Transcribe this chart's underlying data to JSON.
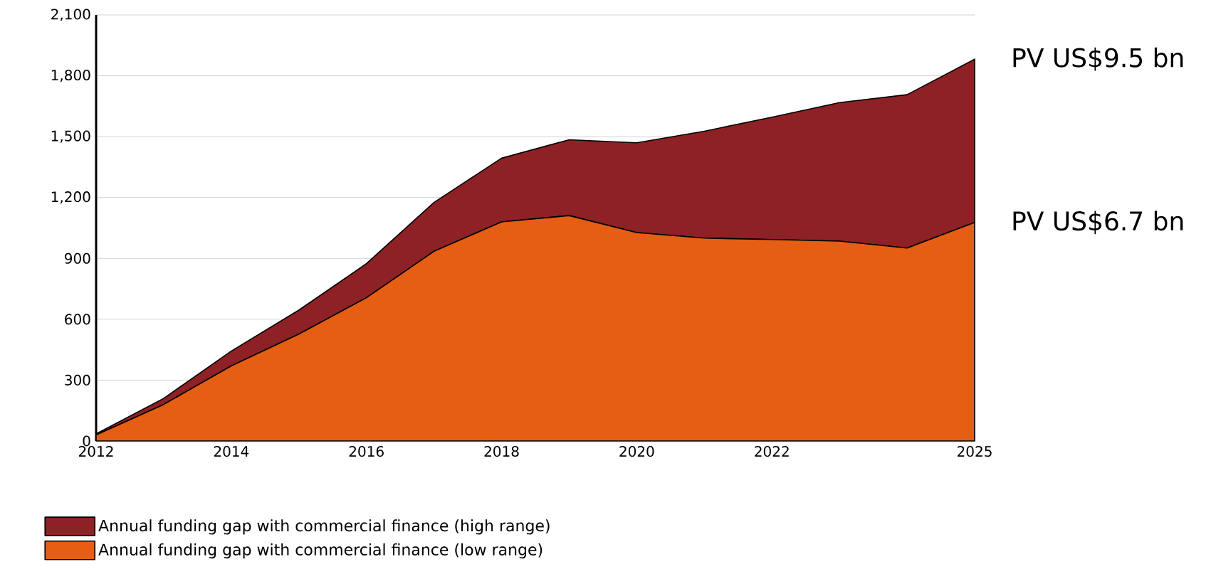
{
  "chart_data": {
    "type": "area",
    "stacked": true,
    "x": [
      2012,
      2013,
      2014,
      2015,
      2016,
      2017,
      2018,
      2019,
      2020,
      2021,
      2022,
      2023,
      2024,
      2025
    ],
    "series": [
      {
        "name": "Annual funding gap with commercial finance (low range)",
        "color": "#e55e13",
        "values": [
          30,
          180,
          370,
          527,
          706,
          935,
          1080,
          1111,
          1027,
          1000,
          993,
          985,
          951,
          1077
        ]
      },
      {
        "name": "Annual funding gap with commercial finance (high range)",
        "color": "#8d2125",
        "values": [
          5,
          30,
          73,
          118,
          168,
          241,
          314,
          374,
          443,
          527,
          603,
          683,
          756,
          805
        ]
      }
    ],
    "xlim": [
      2012,
      2025
    ],
    "xticks": [
      2012,
      2014,
      2016,
      2018,
      2020,
      2022,
      2025
    ],
    "ylim": [
      0,
      2100
    ],
    "yticks": [
      0,
      300,
      600,
      900,
      {
        "value": 1200,
        "label": "1,200"
      },
      {
        "value": 1500,
        "label": "1,500"
      },
      {
        "value": 1800,
        "label": "1,800"
      },
      {
        "value": 2100,
        "label": "2,100"
      }
    ],
    "grid": "y",
    "legend": "bottom left",
    "annotations": [
      {
        "text": "PV US$9.5 bn",
        "x": 2025,
        "y": 1882
      },
      {
        "text": "PV US$6.7 bn",
        "x": 2025,
        "y": 1077
      }
    ]
  }
}
